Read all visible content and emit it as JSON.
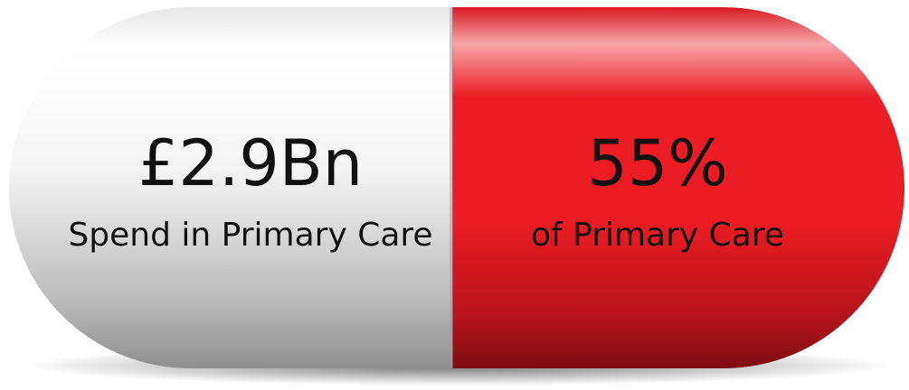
{
  "left": {
    "value": "£2.9Bn",
    "label": "Spend in Primary Care"
  },
  "right": {
    "value": "55%",
    "label": "of Primary Care"
  }
}
